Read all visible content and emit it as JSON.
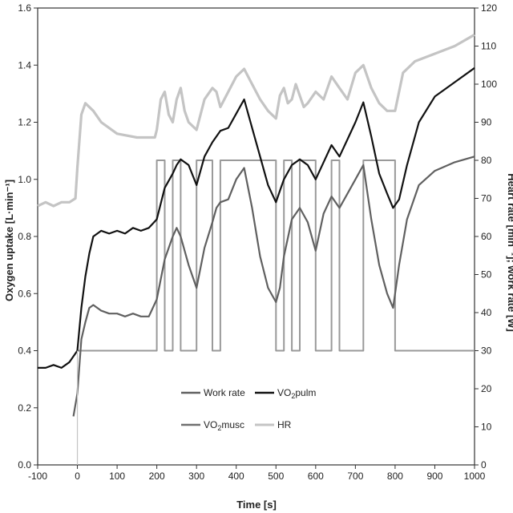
{
  "chart_data": {
    "type": "line",
    "xlabel": "Time [s]",
    "ylabel_left": "Oxygen uptake [L·min⁻¹]",
    "ylabel_right": "Heart rate [min⁻¹]; work rate [W]",
    "xlim": [
      -100,
      1000
    ],
    "ylim_left": [
      0.0,
      1.6
    ],
    "ylim_right": [
      0,
      120
    ],
    "x_ticks": [
      "-100",
      "0",
      "100",
      "200",
      "300",
      "400",
      "500",
      "600",
      "700",
      "800",
      "900",
      "1000"
    ],
    "y_left_ticks": [
      "0.0",
      "0.2",
      "0.4",
      "0.6",
      "0.8",
      "1.0",
      "1.2",
      "1.4",
      "1.6"
    ],
    "y_right_ticks": [
      "0",
      "10",
      "20",
      "30",
      "40",
      "50",
      "60",
      "70",
      "80",
      "90",
      "100",
      "110",
      "120"
    ],
    "grid": false,
    "legend_position": "bottom-center",
    "series": [
      {
        "name": "Work rate",
        "axis": "right",
        "color": "#9a9a9a",
        "x": [
          0,
          200,
          200,
          220,
          220,
          240,
          240,
          260,
          260,
          300,
          300,
          340,
          340,
          360,
          360,
          500,
          500,
          520,
          520,
          540,
          540,
          560,
          560,
          600,
          600,
          640,
          640,
          660,
          660,
          720,
          720,
          800,
          800,
          1000
        ],
        "y": [
          30,
          30,
          80,
          80,
          30,
          30,
          80,
          80,
          30,
          30,
          80,
          80,
          30,
          30,
          80,
          80,
          30,
          30,
          80,
          80,
          30,
          30,
          80,
          80,
          30,
          30,
          80,
          80,
          30,
          30,
          80,
          80,
          30,
          30
        ]
      },
      {
        "name": "VO2pulm",
        "axis": "left",
        "color": "#111111",
        "x": [
          -100,
          -80,
          -60,
          -40,
          -20,
          0,
          10,
          20,
          30,
          40,
          60,
          80,
          100,
          120,
          140,
          160,
          180,
          200,
          220,
          240,
          250,
          260,
          280,
          300,
          320,
          340,
          350,
          360,
          380,
          400,
          420,
          440,
          460,
          480,
          500,
          510,
          520,
          540,
          560,
          580,
          600,
          620,
          640,
          660,
          680,
          700,
          720,
          740,
          760,
          780,
          795,
          810,
          830,
          860,
          900,
          950,
          1000
        ],
        "y": [
          0.34,
          0.34,
          0.35,
          0.34,
          0.36,
          0.4,
          0.55,
          0.66,
          0.74,
          0.8,
          0.82,
          0.81,
          0.82,
          0.81,
          0.83,
          0.82,
          0.83,
          0.86,
          0.97,
          1.02,
          1.05,
          1.07,
          1.05,
          0.98,
          1.08,
          1.13,
          1.15,
          1.17,
          1.18,
          1.23,
          1.28,
          1.18,
          1.08,
          0.98,
          0.92,
          0.96,
          1.0,
          1.05,
          1.07,
          1.05,
          1.0,
          1.06,
          1.12,
          1.08,
          1.14,
          1.2,
          1.27,
          1.15,
          1.02,
          0.95,
          0.9,
          0.93,
          1.05,
          1.2,
          1.29,
          1.34,
          1.39
        ]
      },
      {
        "name": "VO2musc",
        "axis": "left",
        "color": "#606060",
        "x": [
          -10,
          0,
          10,
          20,
          30,
          40,
          60,
          80,
          100,
          120,
          140,
          160,
          180,
          200,
          220,
          240,
          250,
          260,
          280,
          300,
          320,
          340,
          350,
          360,
          380,
          400,
          420,
          440,
          460,
          480,
          500,
          510,
          520,
          540,
          560,
          580,
          600,
          620,
          640,
          660,
          680,
          700,
          720,
          740,
          760,
          780,
          795,
          810,
          830,
          860,
          900,
          950,
          1000
        ],
        "y": [
          0.17,
          0.25,
          0.44,
          0.5,
          0.55,
          0.56,
          0.54,
          0.53,
          0.53,
          0.52,
          0.53,
          0.52,
          0.52,
          0.58,
          0.72,
          0.8,
          0.83,
          0.8,
          0.7,
          0.62,
          0.76,
          0.85,
          0.9,
          0.92,
          0.93,
          1.0,
          1.04,
          0.9,
          0.73,
          0.62,
          0.57,
          0.62,
          0.73,
          0.86,
          0.9,
          0.85,
          0.75,
          0.88,
          0.94,
          0.9,
          0.95,
          1.0,
          1.05,
          0.86,
          0.7,
          0.6,
          0.55,
          0.7,
          0.86,
          0.98,
          1.03,
          1.06,
          1.08
        ]
      },
      {
        "name": "HR",
        "axis": "right",
        "color": "#c4c4c4",
        "x": [
          -100,
          -80,
          -60,
          -40,
          -20,
          -5,
          0,
          10,
          20,
          40,
          60,
          100,
          150,
          195,
          200,
          210,
          220,
          230,
          240,
          250,
          260,
          270,
          280,
          300,
          320,
          340,
          350,
          360,
          380,
          400,
          420,
          440,
          460,
          480,
          500,
          510,
          520,
          530,
          540,
          550,
          560,
          570,
          580,
          600,
          620,
          640,
          660,
          680,
          700,
          720,
          740,
          760,
          780,
          800,
          820,
          850,
          900,
          950,
          1000
        ],
        "y": [
          68,
          69,
          68,
          69,
          69,
          70,
          78,
          92,
          95,
          93,
          90,
          87,
          86,
          86,
          88,
          96,
          98,
          92,
          90,
          96,
          99,
          93,
          90,
          88,
          96,
          99,
          98,
          94,
          98,
          102,
          104,
          100,
          96,
          93,
          91,
          97,
          99,
          95,
          96,
          100,
          97,
          94,
          95,
          98,
          96,
          102,
          99,
          96,
          103,
          105,
          99,
          95,
          93,
          93,
          103,
          106,
          108,
          110,
          113
        ]
      }
    ]
  },
  "legend": {
    "items": [
      {
        "label": "Work rate",
        "color": "#606060",
        "sub": ""
      },
      {
        "label": "VO",
        "sub": "2",
        "suffix": "pulm",
        "color": "#111111"
      },
      {
        "label": "VO",
        "sub": "2",
        "suffix": "musc",
        "color": "#707070"
      },
      {
        "label": "HR",
        "color": "#c4c4c4",
        "sub": ""
      }
    ]
  }
}
